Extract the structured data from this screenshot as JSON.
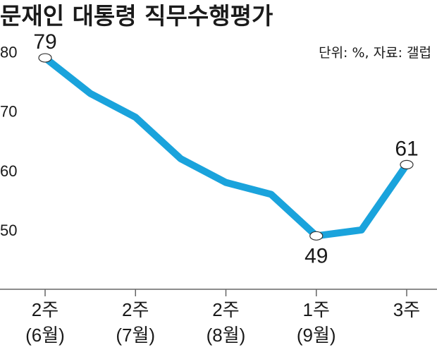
{
  "title": "문재인 대통령 직무수행평가",
  "source_note": "단위: %, 자료: 갤럽",
  "colors": {
    "line": "#1aa3dc",
    "axis": "#666666",
    "marker_fill": "#ffffff",
    "text": "#1a1a1a"
  },
  "chart_data": {
    "type": "line",
    "title": "문재인 대통령 직무수행평가",
    "unit": "%",
    "source": "갤럽",
    "x": [
      0,
      1,
      2,
      3,
      4,
      5,
      6,
      7,
      8
    ],
    "values": [
      79,
      73,
      69,
      62,
      58,
      56,
      49,
      50,
      61
    ],
    "ylim": [
      40,
      84
    ],
    "yticks": [
      50,
      60,
      70,
      80
    ],
    "ytick_labels": [
      "50",
      "60",
      "70",
      "80"
    ],
    "xticks": [
      {
        "x": 0,
        "line1": "2주",
        "line2": "(6월)"
      },
      {
        "x": 2,
        "line1": "2주",
        "line2": "(7월)"
      },
      {
        "x": 4,
        "line1": "2주",
        "line2": "(8월)"
      },
      {
        "x": 6,
        "line1": "1주",
        "line2": "(9월)"
      },
      {
        "x": 8,
        "line1": "3주",
        "line2": ""
      }
    ],
    "labeled_points": [
      {
        "index": 0,
        "label": "79",
        "position": "above"
      },
      {
        "index": 6,
        "label": "49",
        "position": "below"
      },
      {
        "index": 8,
        "label": "61",
        "position": "above"
      }
    ],
    "grid": false,
    "legend": "none"
  }
}
